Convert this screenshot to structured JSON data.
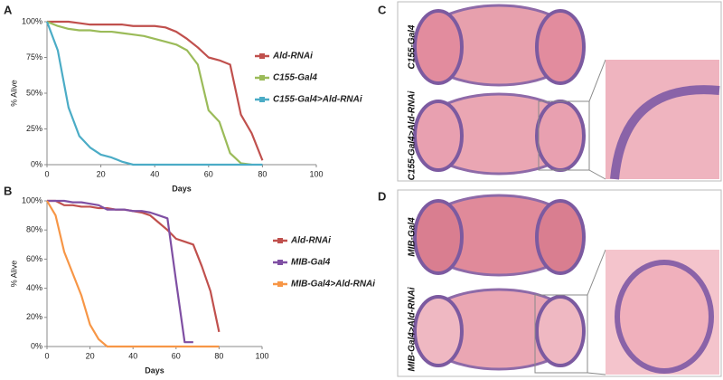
{
  "panels": [
    "A",
    "B",
    "C",
    "D"
  ],
  "chart_data": [
    {
      "type": "line",
      "xlabel": "Days",
      "ylabel": "% Alive",
      "x": [
        0,
        4,
        8,
        12,
        16,
        20,
        24,
        28,
        32,
        36,
        40,
        44,
        48,
        52,
        56,
        60,
        64,
        68,
        72,
        76,
        80
      ],
      "xlim": [
        0,
        100
      ],
      "xticks": [
        0,
        20,
        40,
        60,
        80,
        100
      ],
      "ylim": [
        0,
        100
      ],
      "yticks": [
        {
          "value": 0,
          "label": "0%"
        },
        {
          "value": 25,
          "label": "25%"
        },
        {
          "value": 50,
          "label": "50%"
        },
        {
          "value": 75,
          "label": "75%"
        },
        {
          "value": 100,
          "label": "100%"
        }
      ],
      "series": [
        {
          "name": "Ald-RNAi",
          "color": "#c0504d",
          "values": [
            100,
            100,
            100,
            99,
            98,
            98,
            98,
            98,
            97,
            97,
            97,
            96,
            93,
            88,
            82,
            75,
            73,
            70,
            35,
            22,
            3
          ]
        },
        {
          "name": "C155-Gal4",
          "color": "#9bbb59",
          "values": [
            100,
            97,
            95,
            94,
            94,
            93,
            93,
            92,
            91,
            90,
            88,
            86,
            84,
            80,
            70,
            38,
            30,
            8,
            1,
            0,
            null
          ]
        },
        {
          "name": "C155-Gal4>Ald-RNAi",
          "color": "#4bacc6",
          "values": [
            100,
            80,
            40,
            20,
            12,
            7,
            5,
            2,
            0,
            0,
            0,
            0,
            0,
            0,
            0,
            0,
            0,
            0,
            0,
            0,
            0
          ]
        }
      ]
    },
    {
      "type": "line",
      "xlabel": "Days",
      "ylabel": "% Alive",
      "x": [
        0,
        4,
        8,
        12,
        16,
        20,
        24,
        28,
        32,
        36,
        40,
        44,
        48,
        52,
        56,
        60,
        64,
        68,
        72,
        76,
        80
      ],
      "xlim": [
        0,
        100
      ],
      "xticks": [
        0,
        20,
        40,
        60,
        80,
        100
      ],
      "ylim": [
        0,
        100
      ],
      "yticks": [
        {
          "value": 0,
          "label": "0%"
        },
        {
          "value": 20,
          "label": "20%"
        },
        {
          "value": 40,
          "label": "40%"
        },
        {
          "value": 60,
          "label": "60%"
        },
        {
          "value": 80,
          "label": "80%"
        },
        {
          "value": 100,
          "label": "100%"
        }
      ],
      "series": [
        {
          "name": "Ald-RNAi",
          "color": "#c0504d",
          "values": [
            100,
            100,
            97,
            97,
            96,
            96,
            95,
            95,
            94,
            94,
            93,
            92,
            90,
            85,
            80,
            74,
            72,
            70,
            55,
            38,
            10
          ]
        },
        {
          "name": "MIB-Gal4",
          "color": "#7f4fa3",
          "values": [
            100,
            100,
            100,
            99,
            99,
            98,
            97,
            94,
            94,
            94,
            93,
            93,
            92,
            90,
            88,
            45,
            3,
            3,
            null,
            null,
            null
          ]
        },
        {
          "name": "MIB-Gal4>Ald-RNAi",
          "color": "#f79646",
          "values": [
            100,
            90,
            65,
            50,
            35,
            15,
            5,
            0,
            0,
            0,
            0,
            0,
            0,
            0,
            0,
            0,
            0,
            0,
            0,
            0,
            0
          ]
        }
      ]
    }
  ],
  "images": [
    {
      "top_label": "C155-Gal4",
      "bottom_label": "C155-Gal4>Ald-RNAi"
    },
    {
      "top_label": "MIB-Gal4",
      "bottom_label": "MIB-Gal4>Ald-RNAi"
    }
  ]
}
